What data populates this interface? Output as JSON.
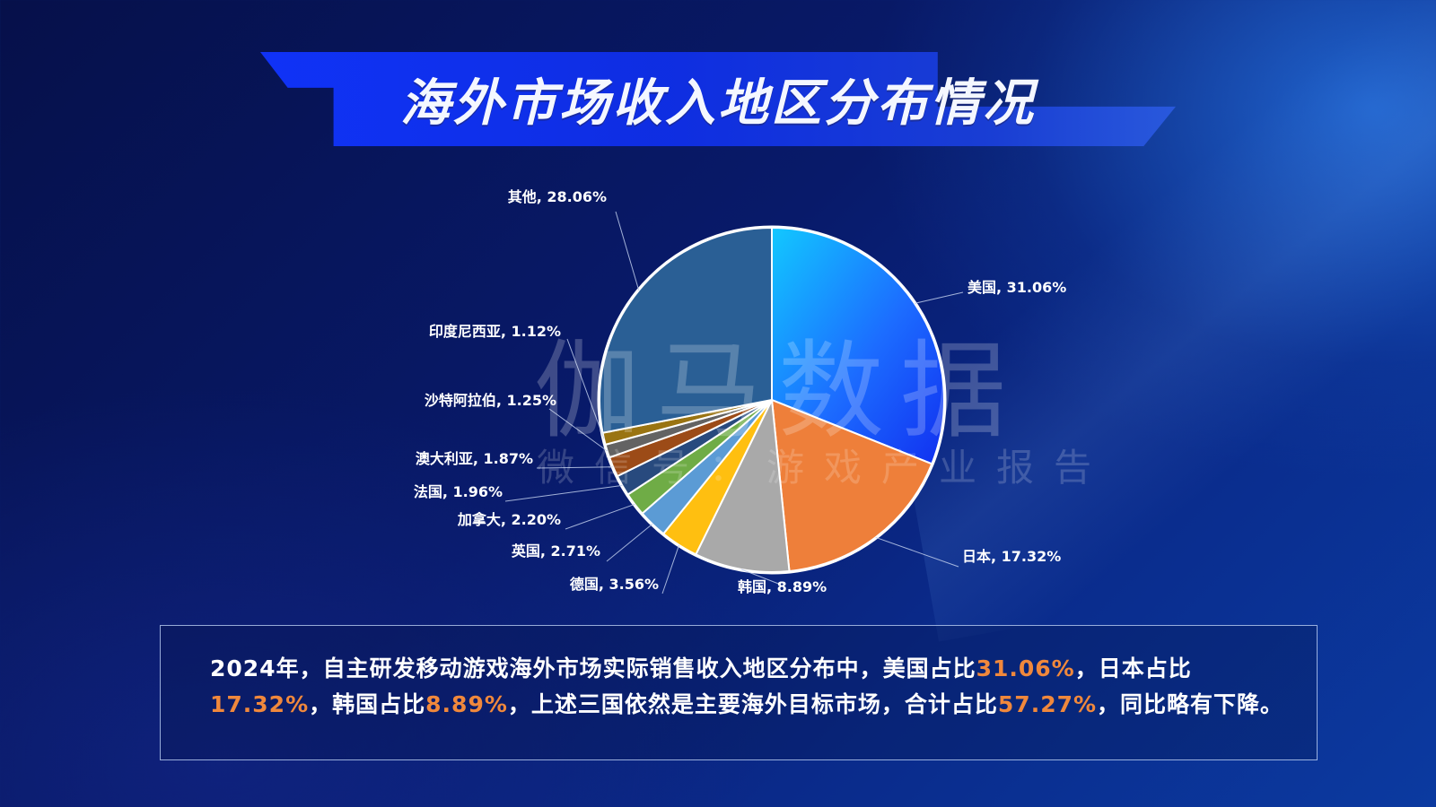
{
  "title": "海外市场收入地区分布情况",
  "watermark": {
    "main": "伽马数据",
    "sub": "微信号：游戏产业报告"
  },
  "chart_data": {
    "type": "pie",
    "title": "海外市场收入地区分布情况",
    "unit": "%",
    "slices": [
      {
        "name": "美国",
        "value": 31.06,
        "color": "#1f6fff",
        "label": "美国, 31.06%"
      },
      {
        "name": "日本",
        "value": 17.32,
        "color": "#ee7f3a",
        "label": "日本, 17.32%"
      },
      {
        "name": "韩国",
        "value": 8.89,
        "color": "#a9a9a9",
        "label": "韩国, 8.89%"
      },
      {
        "name": "德国",
        "value": 3.56,
        "color": "#ffbf10",
        "label": "德国, 3.56%"
      },
      {
        "name": "英国",
        "value": 2.71,
        "color": "#5b9bd5",
        "label": "英国, 2.71%"
      },
      {
        "name": "加拿大",
        "value": 2.2,
        "color": "#6fac46",
        "label": "加拿大, 2.20%"
      },
      {
        "name": "法国",
        "value": 1.96,
        "color": "#284a7e",
        "label": "法国, 1.96%"
      },
      {
        "name": "澳大利亚",
        "value": 1.87,
        "color": "#9c4b17",
        "label": "澳大利亚, 1.87%"
      },
      {
        "name": "沙特阿拉伯",
        "value": 1.25,
        "color": "#636363",
        "label": "沙特阿拉伯, 1.25%"
      },
      {
        "name": "印度尼西亚",
        "value": 1.12,
        "color": "#9a7412",
        "label": "印度尼西亚, 1.12%"
      },
      {
        "name": "其他",
        "value": 28.06,
        "color": "#2a5f95",
        "label": "其他, 28.06%"
      }
    ]
  },
  "summary": {
    "parts": [
      {
        "text": "2024年，自主研发移动游戏海外市场实际销售收入地区分布中，美国占比",
        "highlight": false
      },
      {
        "text": "31.06%",
        "highlight": true
      },
      {
        "text": "，日本占比",
        "highlight": false
      },
      {
        "text": "17.32%",
        "highlight": true
      },
      {
        "text": "，韩国占比",
        "highlight": false
      },
      {
        "text": "8.89%",
        "highlight": true
      },
      {
        "text": "，上述三国依然是主要海外目标市场，合计占比",
        "highlight": false
      },
      {
        "text": "57.27%",
        "highlight": true
      },
      {
        "text": "，同比略有下降。",
        "highlight": false
      }
    ]
  },
  "colors": {
    "accent": "#f0883c",
    "title_band": "#1034ff"
  }
}
